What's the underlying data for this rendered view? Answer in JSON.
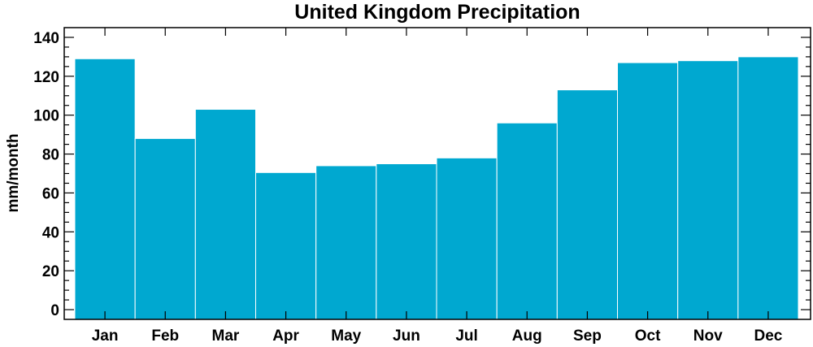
{
  "chart_data": {
    "type": "bar",
    "title": "United Kingdom Precipitation",
    "xlabel": "",
    "ylabel": "mm/month",
    "categories": [
      "Jan",
      "Feb",
      "Mar",
      "Apr",
      "May",
      "Jun",
      "Jul",
      "Aug",
      "Sep",
      "Oct",
      "Nov",
      "Dec"
    ],
    "values": [
      129,
      88,
      103,
      70.5,
      74,
      75,
      78,
      96,
      113,
      127,
      128,
      130
    ],
    "ylim": [
      -5,
      145
    ],
    "yticks": [
      0,
      20,
      40,
      60,
      80,
      100,
      120,
      140
    ],
    "grid": false,
    "legend": "none",
    "colors": {
      "bar": "#00a8d0",
      "axis": "#000000",
      "background": "#ffffff"
    }
  }
}
